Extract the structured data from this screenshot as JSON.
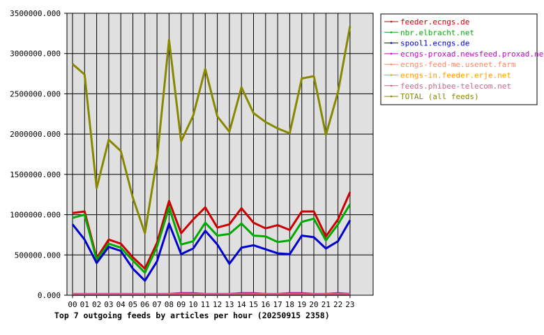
{
  "chart_data": {
    "type": "line",
    "title": "Top 7 outgoing feeds by articles per hour (20250915 2358)",
    "xlabel": "",
    "ylabel": "",
    "ylim": [
      0,
      3500000
    ],
    "yticks": [
      0,
      500000,
      1000000,
      1500000,
      2000000,
      2500000,
      3000000,
      3500000
    ],
    "ytick_labels": [
      "0.000",
      "500000.000",
      "1000000.000",
      "1500000.000",
      "2000000.000",
      "2500000.000",
      "3000000.000",
      "3500000.000"
    ],
    "grid": true,
    "legend_position": "right",
    "categories": [
      "00",
      "01",
      "02",
      "03",
      "04",
      "05",
      "06",
      "07",
      "08",
      "09",
      "10",
      "11",
      "12",
      "13",
      "14",
      "15",
      "16",
      "17",
      "18",
      "19",
      "20",
      "21",
      "22",
      "23"
    ],
    "series": [
      {
        "name": "feeder.ecngs.de",
        "color": "#cc0000",
        "values": [
          1020000,
          1040000,
          460000,
          690000,
          640000,
          470000,
          330000,
          650000,
          1170000,
          770000,
          940000,
          1090000,
          840000,
          880000,
          1080000,
          900000,
          830000,
          870000,
          810000,
          1040000,
          1040000,
          730000,
          940000,
          1280000
        ]
      },
      {
        "name": "nbr.elbracht.net",
        "color": "#00aa00",
        "values": [
          960000,
          1000000,
          440000,
          640000,
          590000,
          430000,
          280000,
          600000,
          1090000,
          630000,
          670000,
          900000,
          740000,
          760000,
          890000,
          740000,
          730000,
          660000,
          680000,
          910000,
          950000,
          680000,
          880000,
          1130000
        ]
      },
      {
        "name": "spool1.ecngs.de",
        "color": "#0000cc",
        "values": [
          880000,
          690000,
          400000,
          600000,
          550000,
          330000,
          180000,
          420000,
          890000,
          510000,
          580000,
          800000,
          630000,
          390000,
          590000,
          620000,
          570000,
          520000,
          510000,
          740000,
          720000,
          580000,
          670000,
          930000
        ]
      },
      {
        "name": "ecngs-proxad.newsfeed.proxad.net",
        "color": "#cc00cc",
        "values": [
          15000,
          15000,
          15000,
          15000,
          15000,
          15000,
          15000,
          15000,
          15000,
          25000,
          25000,
          15000,
          15000,
          15000,
          25000,
          25000,
          15000,
          15000,
          25000,
          25000,
          15000,
          15000,
          25000,
          15000
        ]
      },
      {
        "name": "ecngs-feed-me.usenet.farm",
        "color": "#ff8866",
        "values": [
          10000,
          10000,
          10000,
          10000,
          10000,
          10000,
          10000,
          10000,
          10000,
          10000,
          10000,
          10000,
          10000,
          10000,
          10000,
          10000,
          10000,
          10000,
          10000,
          10000,
          10000,
          10000,
          10000,
          10000
        ]
      },
      {
        "name": "ecngs-in.feeder.erje.net",
        "color": "#ff9900",
        "values": [
          5000,
          5000,
          5000,
          5000,
          5000,
          5000,
          5000,
          5000,
          5000,
          5000,
          5000,
          5000,
          5000,
          5000,
          5000,
          5000,
          5000,
          5000,
          5000,
          5000,
          5000,
          5000,
          5000,
          5000
        ]
      },
      {
        "name": "feeds.phibee-telecom.net",
        "color": "#cc6688",
        "values": [
          5000,
          5000,
          5000,
          5000,
          5000,
          5000,
          5000,
          5000,
          5000,
          5000,
          5000,
          5000,
          5000,
          5000,
          5000,
          5000,
          5000,
          5000,
          5000,
          5000,
          5000,
          5000,
          5000,
          5000
        ]
      },
      {
        "name": "TOTAL (all feeds)",
        "color": "#888800",
        "values": [
          2870000,
          2740000,
          1330000,
          1930000,
          1790000,
          1210000,
          770000,
          1690000,
          3170000,
          1910000,
          2230000,
          2810000,
          2220000,
          2030000,
          2580000,
          2260000,
          2150000,
          2070000,
          2010000,
          2690000,
          2720000,
          1990000,
          2520000,
          3340000
        ]
      }
    ]
  }
}
